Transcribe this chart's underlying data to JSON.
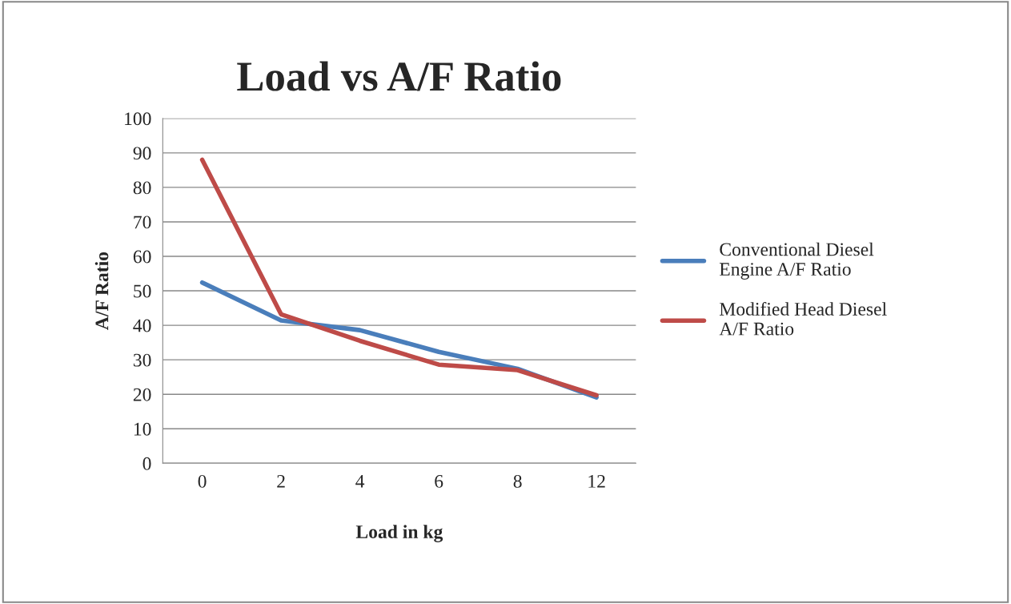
{
  "chart_data": {
    "type": "line",
    "title": "Load vs A/F Ratio",
    "xlabel": "Load in kg",
    "ylabel": "A/F Ratio",
    "categories": [
      "0",
      "2",
      "4",
      "6",
      "8",
      "12"
    ],
    "series": [
      {
        "name": "Conventional Diesel Engine A/F Ratio",
        "color": "#4a7ebb",
        "values": [
          52.4,
          41.4,
          38.6,
          32.3,
          27.4,
          19.1
        ]
      },
      {
        "name": "Modified Head Diesel A/F Ratio",
        "color": "#be4b48",
        "values": [
          88,
          43.2,
          35.5,
          28.6,
          27,
          19.7
        ]
      }
    ],
    "ylim": [
      0,
      100
    ],
    "yticks": [
      0,
      10,
      20,
      30,
      40,
      50,
      60,
      70,
      80,
      90,
      100
    ],
    "grid": "y",
    "legend": "right",
    "marker": "none",
    "line_style": "solid"
  }
}
